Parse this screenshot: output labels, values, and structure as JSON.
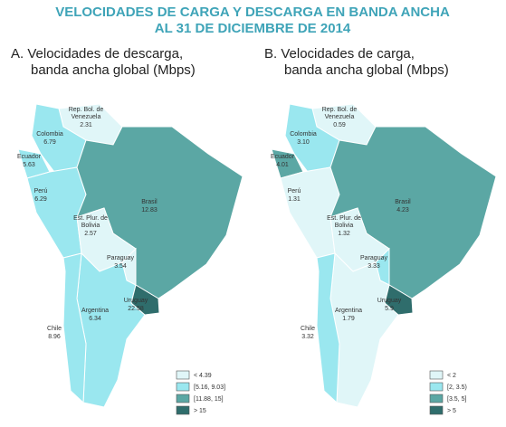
{
  "header": {
    "title_line1": "VELOCIDADES DE CARGA Y DESCARGA EN BANDA ANCHA",
    "title_line2": "AL 31 DE DICIEMBRE DE 2014"
  },
  "maps": [
    {
      "title_line1": "A. Velocidades de descarga,",
      "title_line2": "banda ancha global (Mbps)",
      "countries": {
        "venezuela": {
          "name_line1": "Rep. Bol. de",
          "name_line2": "Venezuela",
          "value": "2.31"
        },
        "colombia": {
          "name": "Colombia",
          "value": "6.79"
        },
        "ecuador": {
          "name": "Ecuador",
          "value": "5.63"
        },
        "peru": {
          "name": "Perú",
          "value": "6.29"
        },
        "brasil": {
          "name": "Brasil",
          "value": "12.83"
        },
        "bolivia": {
          "name_line1": "Est. Plur. de",
          "name_line2": "Bolivia",
          "value": "2.57"
        },
        "paraguay": {
          "name": "Paraguay",
          "value": "3.54"
        },
        "argentina": {
          "name": "Argentina",
          "value": "6.34"
        },
        "chile": {
          "name": "Chile",
          "value": "8.96"
        },
        "uruguay": {
          "name": "Uruguay",
          "value": "22.58"
        }
      },
      "legend": [
        "< 4.39",
        "[5.16, 9.03]",
        "[11.88, 15]",
        "> 15"
      ]
    },
    {
      "title_line1": "B. Velocidades de carga,",
      "title_line2": "banda ancha global (Mbps)",
      "countries": {
        "venezuela": {
          "name_line1": "Rep. Bol. de",
          "name_line2": "Venezuela",
          "value": "0.59"
        },
        "colombia": {
          "name": "Colombia",
          "value": "3.10"
        },
        "ecuador": {
          "name": "Ecuador",
          "value": "4.01"
        },
        "peru": {
          "name": "Perú",
          "value": "1.31"
        },
        "brasil": {
          "name": "Brasil",
          "value": "4.23"
        },
        "bolivia": {
          "name_line1": "Est. Plur. de",
          "name_line2": "Bolivia",
          "value": "1.32"
        },
        "paraguay": {
          "name": "Paraguay",
          "value": "3.33"
        },
        "argentina": {
          "name": "Argentina",
          "value": "1.79"
        },
        "chile": {
          "name": "Chile",
          "value": "3.32"
        },
        "uruguay": {
          "name": "Uruguay",
          "value": "5.9"
        }
      },
      "legend": [
        "< 2",
        "[2, 3.5)",
        "[3.5, 5]",
        "> 5"
      ]
    }
  ]
}
